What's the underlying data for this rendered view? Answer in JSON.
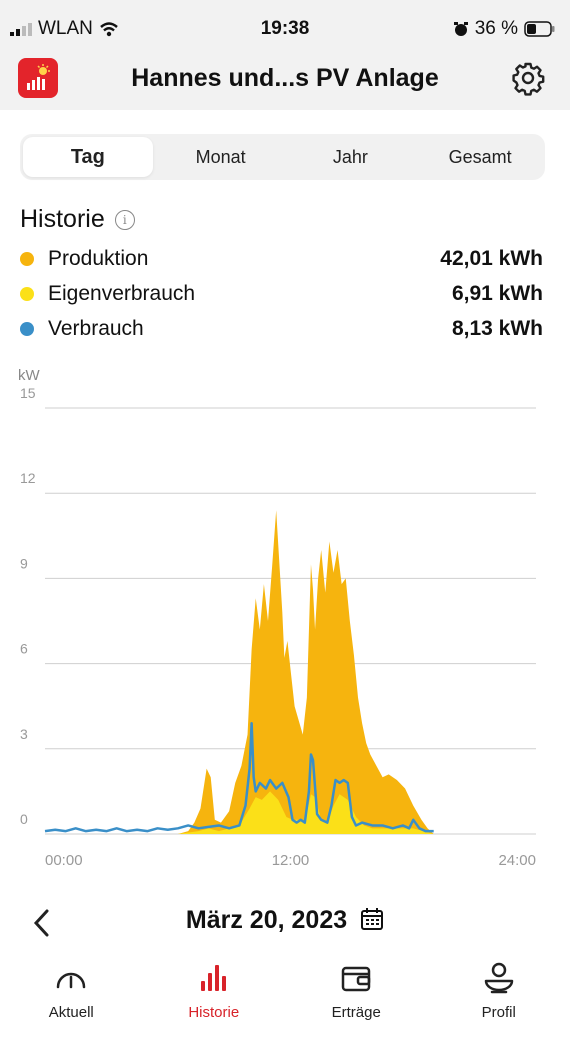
{
  "status_bar": {
    "carrier": "WLAN",
    "time": "19:38",
    "battery": "36 %"
  },
  "header": {
    "title": "Hannes und...s PV Anlage"
  },
  "tabs": [
    {
      "label": "Tag",
      "active": true
    },
    {
      "label": "Monat",
      "active": false
    },
    {
      "label": "Jahr",
      "active": false
    },
    {
      "label": "Gesamt",
      "active": false
    }
  ],
  "history": {
    "title": "Historie",
    "info_icon": "info-icon",
    "legend": [
      {
        "label": "Produktion",
        "value": "42,01 kWh",
        "color": "#f6b40e"
      },
      {
        "label": "Eigenverbrauch",
        "value": "6,91 kWh",
        "color": "#fbe018"
      },
      {
        "label": "Verbrauch",
        "value": "8,13 kWh",
        "color": "#3a8fc8"
      }
    ]
  },
  "chart_data": {
    "type": "area",
    "ylabel": "kW",
    "ylim": [
      0,
      15
    ],
    "y_ticks": [
      "15",
      "12",
      "9",
      "6",
      "3",
      "0"
    ],
    "xlim": [
      0,
      24
    ],
    "x_ticks": [
      "00:00",
      "12:00",
      "24:00"
    ],
    "grid": true,
    "colors": {
      "produktion": "#f6b40e",
      "eigenverbrauch": "#fbe018",
      "verbrauch": "#3a8fc8"
    },
    "series": [
      {
        "name": "Produktion",
        "x": [
          0,
          6.5,
          7.0,
          7.3,
          7.6,
          7.9,
          8.1,
          8.3,
          8.6,
          9.0,
          9.3,
          9.6,
          9.9,
          10.1,
          10.3,
          10.5,
          10.7,
          10.9,
          11.1,
          11.3,
          11.5,
          11.6,
          11.7,
          11.85,
          12.0,
          12.2,
          12.4,
          12.6,
          12.8,
          13.0,
          13.1,
          13.2,
          13.35,
          13.5,
          13.7,
          13.9,
          14.1,
          14.3,
          14.5,
          14.7,
          14.9,
          15.1,
          15.3,
          15.5,
          15.7,
          15.9,
          16.2,
          16.5,
          16.8,
          17.2,
          17.6,
          18.0,
          18.4,
          18.7,
          19.0,
          24
        ],
        "values": [
          0,
          0,
          0.1,
          0.4,
          0.9,
          2.3,
          2.0,
          0.5,
          0.4,
          0.8,
          1.8,
          2.4,
          3.5,
          6.5,
          8.3,
          7.2,
          8.8,
          7.5,
          9.4,
          11.4,
          9.0,
          7.8,
          6.2,
          6.8,
          5.8,
          4.5,
          4.0,
          3.5,
          4.8,
          9.5,
          8.6,
          7.2,
          9.0,
          10.0,
          8.5,
          10.3,
          9.2,
          10.0,
          8.8,
          9.0,
          7.5,
          6.3,
          4.8,
          3.9,
          3.2,
          2.8,
          2.4,
          2.0,
          2.1,
          1.9,
          1.6,
          1.0,
          0.5,
          0.2,
          0,
          0
        ]
      },
      {
        "name": "Eigenverbrauch",
        "x": [
          0,
          6.5,
          7.5,
          8.0,
          8.5,
          9.0,
          9.5,
          10.0,
          10.3,
          10.6,
          11.0,
          11.4,
          11.8,
          12.1,
          12.4,
          12.7,
          13.0,
          13.2,
          13.5,
          13.8,
          14.1,
          14.4,
          14.8,
          15.2,
          15.6,
          16.0,
          16.5,
          17.0,
          17.5,
          18.0,
          18.5,
          19.0,
          24
        ],
        "values": [
          0,
          0,
          0.1,
          0.2,
          0.1,
          0.2,
          0.3,
          0.9,
          1.3,
          1.2,
          1.5,
          1.2,
          0.6,
          0.5,
          0.5,
          0.4,
          1.4,
          1.3,
          0.5,
          0.4,
          1.0,
          1.4,
          1.2,
          0.6,
          0.3,
          0.2,
          0.2,
          0.2,
          0.2,
          0.2,
          0.1,
          0,
          0
        ]
      },
      {
        "name": "Verbrauch",
        "x": [
          0,
          0.5,
          1,
          1.5,
          2,
          2.5,
          3,
          3.5,
          4,
          4.5,
          5,
          5.5,
          6,
          6.5,
          7,
          7.5,
          8,
          8.5,
          9,
          9.5,
          9.8,
          10.0,
          10.1,
          10.2,
          10.3,
          10.5,
          10.8,
          11.0,
          11.3,
          11.6,
          11.9,
          12.1,
          12.3,
          12.5,
          12.7,
          12.9,
          13.0,
          13.1,
          13.3,
          13.5,
          13.8,
          14.0,
          14.2,
          14.4,
          14.6,
          14.8,
          15.0,
          15.2,
          15.5,
          16,
          16.5,
          17,
          17.5,
          17.8,
          18.0,
          18.3,
          18.6,
          19.0
        ],
        "values": [
          0.1,
          0.15,
          0.1,
          0.2,
          0.1,
          0.15,
          0.1,
          0.2,
          0.1,
          0.15,
          0.1,
          0.2,
          0.15,
          0.2,
          0.3,
          0.2,
          0.25,
          0.3,
          0.2,
          0.3,
          1.0,
          2.3,
          3.9,
          2.0,
          1.5,
          1.8,
          1.6,
          1.9,
          1.6,
          1.8,
          1.3,
          0.5,
          0.4,
          0.5,
          0.4,
          1.5,
          2.8,
          2.6,
          0.7,
          0.5,
          0.4,
          1.0,
          1.9,
          1.8,
          1.9,
          1.8,
          0.6,
          0.3,
          0.4,
          0.3,
          0.3,
          0.2,
          0.3,
          0.2,
          0.5,
          0.2,
          0.1,
          0.1
        ]
      }
    ]
  },
  "date_nav": {
    "date": "März 20, 2023"
  },
  "bottom_nav": [
    {
      "label": "Aktuell",
      "icon": "gauge-icon",
      "active": false
    },
    {
      "label": "Historie",
      "icon": "bar-chart-icon",
      "active": true
    },
    {
      "label": "Erträge",
      "icon": "wallet-icon",
      "active": false
    },
    {
      "label": "Profil",
      "icon": "profile-icon",
      "active": false
    }
  ]
}
